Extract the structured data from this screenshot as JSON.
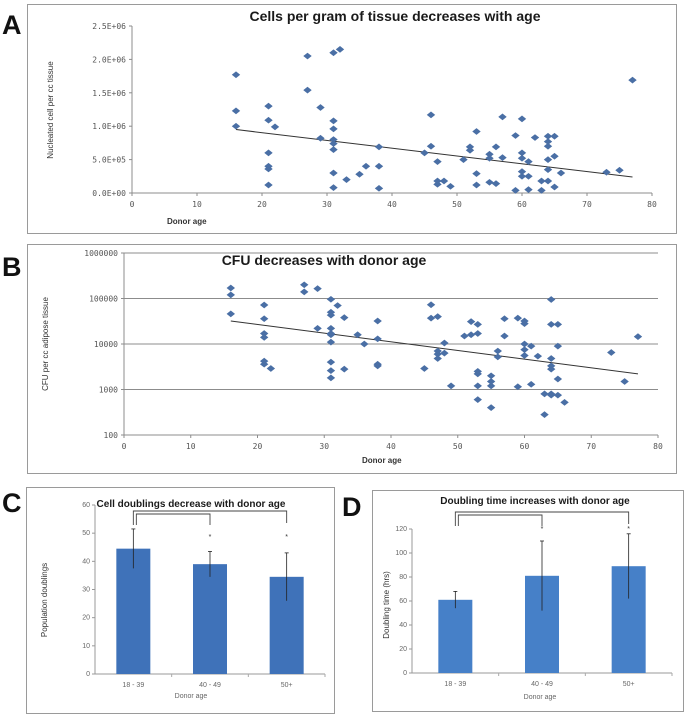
{
  "panels": {
    "A": "A",
    "B": "B",
    "C": "C",
    "D": "D"
  },
  "chart_data": [
    {
      "id": "A",
      "type": "scatter",
      "title": "Cells per gram of tissue decreases with age",
      "xlabel": "Donor age",
      "ylabel": "Nucleated cell per cc tissue",
      "xlim": [
        0,
        80
      ],
      "ylim": [
        0,
        2500000
      ],
      "xticks": [
        0,
        10,
        20,
        30,
        40,
        50,
        60,
        70,
        80
      ],
      "yticks": [
        0,
        500000,
        1000000,
        1500000,
        2000000,
        2500000
      ],
      "ytick_labels": [
        "0.0E+00",
        "5.0E+05",
        "1.0E+06",
        "1.5E+06",
        "2.0E+06",
        "2.5E+06"
      ],
      "grid": false,
      "marker_color": "#4a6fa5",
      "trendline": {
        "x": [
          16,
          77
        ],
        "y": [
          950000,
          240000
        ]
      },
      "points": [
        [
          16,
          1770000
        ],
        [
          16,
          1230000
        ],
        [
          16,
          1000000
        ],
        [
          21,
          1300000
        ],
        [
          21,
          1090000
        ],
        [
          22,
          990000
        ],
        [
          21,
          600000
        ],
        [
          21,
          400000
        ],
        [
          21,
          360000
        ],
        [
          21,
          120000
        ],
        [
          27,
          2050000
        ],
        [
          27,
          1540000
        ],
        [
          29,
          1280000
        ],
        [
          29,
          820000
        ],
        [
          31,
          2100000
        ],
        [
          32,
          2150000
        ],
        [
          31,
          1080000
        ],
        [
          31,
          960000
        ],
        [
          31,
          800000
        ],
        [
          31,
          740000
        ],
        [
          31,
          650000
        ],
        [
          31,
          300000
        ],
        [
          31,
          80000
        ],
        [
          33,
          200000
        ],
        [
          35,
          280000
        ],
        [
          36,
          400000
        ],
        [
          38,
          690000
        ],
        [
          38,
          400000
        ],
        [
          38,
          70000
        ],
        [
          46,
          1170000
        ],
        [
          46,
          700000
        ],
        [
          45,
          600000
        ],
        [
          47,
          470000
        ],
        [
          47,
          180000
        ],
        [
          47,
          130000
        ],
        [
          48,
          180000
        ],
        [
          49,
          100000
        ],
        [
          51,
          500000
        ],
        [
          52,
          690000
        ],
        [
          52,
          640000
        ],
        [
          53,
          920000
        ],
        [
          53,
          290000
        ],
        [
          53,
          120000
        ],
        [
          55,
          580000
        ],
        [
          55,
          520000
        ],
        [
          55,
          160000
        ],
        [
          56,
          140000
        ],
        [
          56,
          690000
        ],
        [
          57,
          1140000
        ],
        [
          57,
          530000
        ],
        [
          59,
          860000
        ],
        [
          59,
          40000
        ],
        [
          60,
          1110000
        ],
        [
          60,
          600000
        ],
        [
          60,
          520000
        ],
        [
          60,
          320000
        ],
        [
          60,
          250000
        ],
        [
          61,
          470000
        ],
        [
          61,
          250000
        ],
        [
          61,
          50000
        ],
        [
          62,
          830000
        ],
        [
          63,
          180000
        ],
        [
          63,
          40000
        ],
        [
          64,
          850000
        ],
        [
          64,
          770000
        ],
        [
          64,
          700000
        ],
        [
          64,
          500000
        ],
        [
          64,
          350000
        ],
        [
          64,
          180000
        ],
        [
          65,
          850000
        ],
        [
          65,
          550000
        ],
        [
          65,
          90000
        ],
        [
          66,
          300000
        ],
        [
          73,
          310000
        ],
        [
          75,
          340000
        ],
        [
          77,
          1690000
        ]
      ]
    },
    {
      "id": "B",
      "type": "scatter",
      "scale": "log",
      "title": "CFU decreases with donor age",
      "xlabel": "Donor age",
      "ylabel": "CFU per cc adipose tissue",
      "xlim": [
        0,
        80
      ],
      "ylim": [
        100,
        1000000
      ],
      "xticks": [
        0,
        10,
        20,
        30,
        40,
        50,
        60,
        70,
        80
      ],
      "yticks": [
        100,
        1000,
        10000,
        100000,
        1000000
      ],
      "ytick_labels": [
        "100",
        "1000",
        "10000",
        "100000",
        "1000000"
      ],
      "grid": true,
      "marker_color": "#4a6fa5",
      "trendline": {
        "x": [
          16,
          77
        ],
        "y": [
          32000,
          2200
        ]
      },
      "points": [
        [
          16,
          170000
        ],
        [
          16,
          120000
        ],
        [
          16,
          46000
        ],
        [
          21,
          72000
        ],
        [
          21,
          36000
        ],
        [
          21,
          17000
        ],
        [
          21,
          14000
        ],
        [
          21,
          4200
        ],
        [
          21,
          3600
        ],
        [
          22,
          2900
        ],
        [
          27,
          200000
        ],
        [
          27,
          140000
        ],
        [
          29,
          165000
        ],
        [
          29,
          22000
        ],
        [
          31,
          96000
        ],
        [
          31,
          50000
        ],
        [
          31,
          43000
        ],
        [
          31,
          22000
        ],
        [
          31,
          17000
        ],
        [
          31,
          16000
        ],
        [
          31,
          11000
        ],
        [
          31,
          4000
        ],
        [
          31,
          2600
        ],
        [
          31,
          1800
        ],
        [
          32,
          70000
        ],
        [
          33,
          38000
        ],
        [
          33,
          2800
        ],
        [
          35,
          16000
        ],
        [
          36,
          10000
        ],
        [
          38,
          32000
        ],
        [
          38,
          13000
        ],
        [
          38,
          3600
        ],
        [
          38,
          3300
        ],
        [
          45,
          2900
        ],
        [
          46,
          73000
        ],
        [
          46,
          37000
        ],
        [
          47,
          40000
        ],
        [
          47,
          7000
        ],
        [
          47,
          6000
        ],
        [
          47,
          4800
        ],
        [
          48,
          10500
        ],
        [
          48,
          6300
        ],
        [
          49,
          1200
        ],
        [
          51,
          15000
        ],
        [
          52,
          16000
        ],
        [
          52,
          31000
        ],
        [
          53,
          17000
        ],
        [
          53,
          27000
        ],
        [
          53,
          2500
        ],
        [
          53,
          2200
        ],
        [
          53,
          1200
        ],
        [
          53,
          600
        ],
        [
          55,
          2000
        ],
        [
          55,
          1200
        ],
        [
          55,
          1500
        ],
        [
          55,
          400
        ],
        [
          56,
          7000
        ],
        [
          56,
          5200
        ],
        [
          57,
          36000
        ],
        [
          57,
          15000
        ],
        [
          59,
          37000
        ],
        [
          59,
          1150
        ],
        [
          60,
          10000
        ],
        [
          60,
          7500
        ],
        [
          60,
          5600
        ],
        [
          60,
          28000
        ],
        [
          60,
          32000
        ],
        [
          61,
          9000
        ],
        [
          61,
          1300
        ],
        [
          62,
          5400
        ],
        [
          63,
          280
        ],
        [
          63,
          800
        ],
        [
          64,
          95000
        ],
        [
          64,
          27000
        ],
        [
          64,
          4800
        ],
        [
          64,
          3300
        ],
        [
          64,
          2800
        ],
        [
          64,
          800
        ],
        [
          64,
          750
        ],
        [
          65,
          27000
        ],
        [
          65,
          9000
        ],
        [
          65,
          1700
        ],
        [
          65,
          750
        ],
        [
          66,
          520
        ],
        [
          73,
          6500
        ],
        [
          75,
          1500
        ],
        [
          77,
          14500
        ]
      ]
    },
    {
      "id": "C",
      "type": "bar",
      "title": "Cell doublings  decrease with donor age",
      "xlabel": "Donor age",
      "ylabel": "Population doublings",
      "categories": [
        "18 - 39",
        "40 - 49",
        "50+"
      ],
      "values": [
        44.5,
        39,
        34.5
      ],
      "errors": [
        7,
        4.5,
        8.5
      ],
      "ylim": [
        0,
        60
      ],
      "yticks": [
        0,
        10,
        20,
        30,
        40,
        50,
        60
      ],
      "significance": {
        "comparisons": [
          [
            "18 - 39",
            "40 - 49"
          ],
          [
            "18 - 39",
            "50+"
          ]
        ],
        "marker": "*"
      },
      "bar_color": "#3f72b9"
    },
    {
      "id": "D",
      "type": "bar",
      "title": "Doubling time increases with donor age",
      "xlabel": "Donor age",
      "ylabel": "Doubling time (hrs)",
      "categories": [
        "18 - 39",
        "40 - 49",
        "50+"
      ],
      "values": [
        61,
        81,
        89
      ],
      "errors": [
        7,
        29,
        27
      ],
      "ylim": [
        0,
        120
      ],
      "yticks": [
        0,
        20,
        40,
        60,
        80,
        100,
        120
      ],
      "significance": {
        "comparisons": [
          [
            "18 - 39",
            "40 - 49"
          ],
          [
            "18 - 39",
            "50+"
          ]
        ],
        "marker": "*"
      },
      "bar_color": "#4680c8"
    }
  ]
}
